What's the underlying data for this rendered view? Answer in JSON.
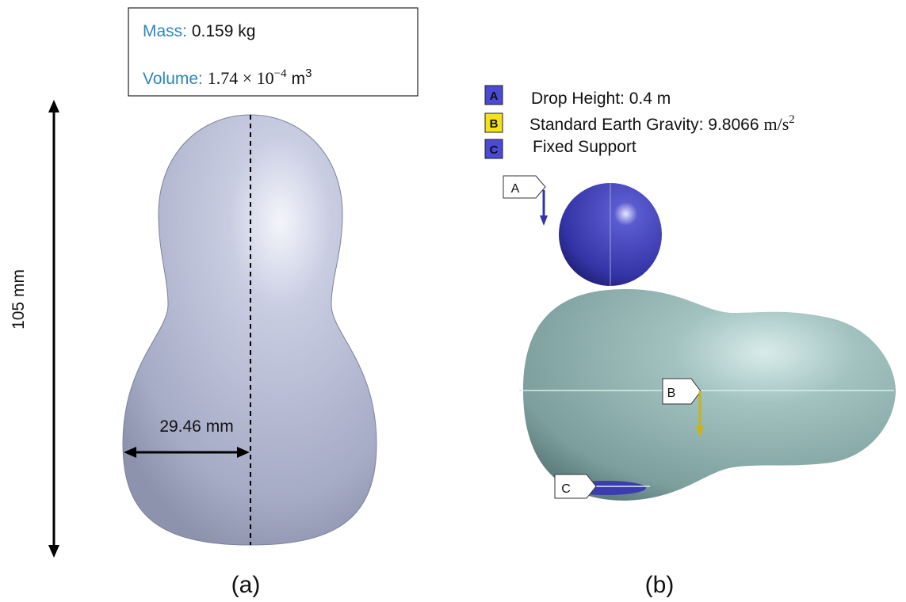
{
  "panel_a": {
    "info_box": {
      "mass_label": "Mass:",
      "mass_value": "0.159 kg",
      "volume_label": "Volume:",
      "volume_value": "1.74 × 10",
      "volume_exponent": "−4",
      "volume_unit": "m",
      "volume_unit_exponent": "3"
    },
    "height_dimension": "105 mm",
    "width_dimension": "29.46 mm",
    "caption": "(a)"
  },
  "panel_b": {
    "legend": [
      {
        "key": "A",
        "label": "Drop Height: 0.4 m"
      },
      {
        "key": "B",
        "label": "Standard Earth Gravity: 9.8066",
        "unit": "m/s",
        "unit_exponent": "2"
      },
      {
        "key": "C",
        "label": "Fixed Support"
      }
    ],
    "callouts": [
      "A",
      "B",
      "C"
    ],
    "caption": "(b)"
  }
}
